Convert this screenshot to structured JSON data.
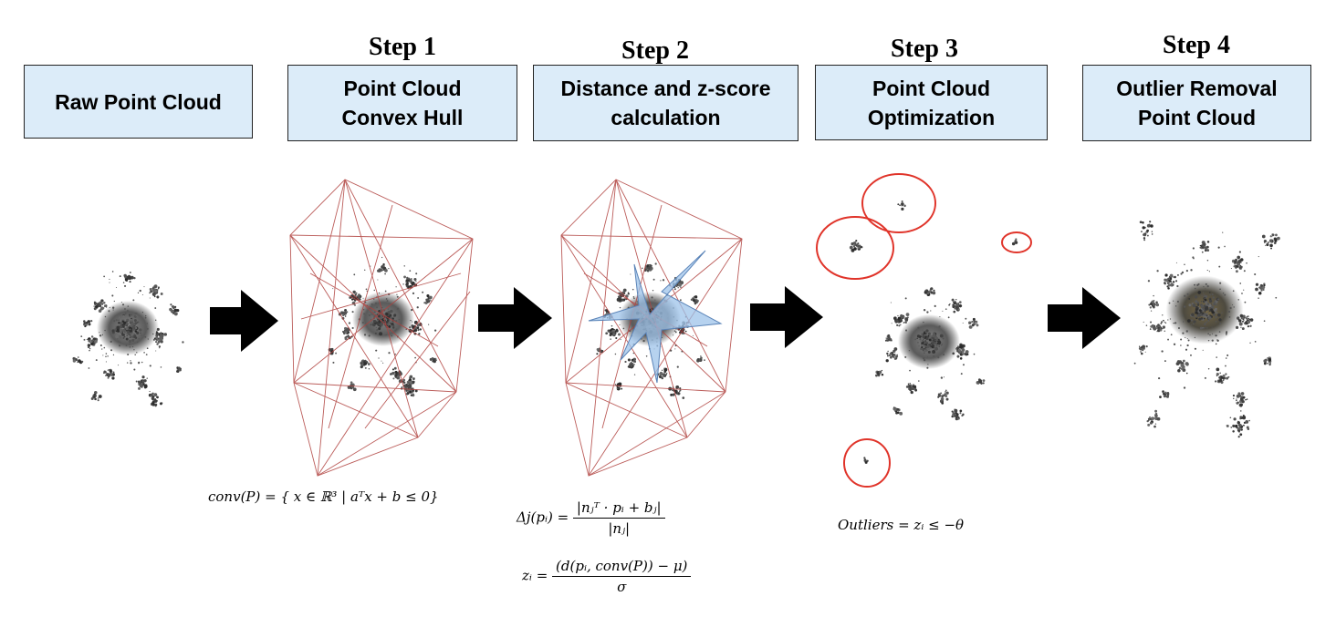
{
  "steps": [
    {
      "title": "",
      "label": "Raw Point Cloud"
    },
    {
      "title": "Step 1",
      "label": "Point Cloud\nConvex Hull"
    },
    {
      "title": "Step 2",
      "label": "Distance and z-score\ncalculation"
    },
    {
      "title": "Step 3",
      "label": "Point Cloud\nOptimization"
    },
    {
      "title": "Step 4",
      "label": "Outlier Removal\nPoint Cloud"
    }
  ],
  "formulas": {
    "hull": {
      "lhs": "conv(P) = ",
      "set": "{ x ∈ ℝ³ | aᵀx + b ≤ 0}"
    },
    "distance": {
      "lhs": "Δj(pᵢ) = ",
      "num": "|nⱼᵀ · pᵢ + bⱼ|",
      "den": "|nⱼ|"
    },
    "zscore": {
      "lhs": "zᵢ = ",
      "num": "(d(pᵢ, conv(P)) − μ)",
      "den": "σ"
    },
    "outliers": {
      "text": "Outliers =  zᵢ ≤ −θ"
    }
  },
  "colors": {
    "box_fill": "#dcecf9",
    "hull_lines": "#b0413e",
    "outlier_circles": "#e0342a",
    "arrow": "#000000",
    "star_fill": "#9ec3ea"
  },
  "icons": [
    "right-arrow-icon",
    "point-cloud-image",
    "convex-hull-image",
    "outlier-circle-icon"
  ]
}
